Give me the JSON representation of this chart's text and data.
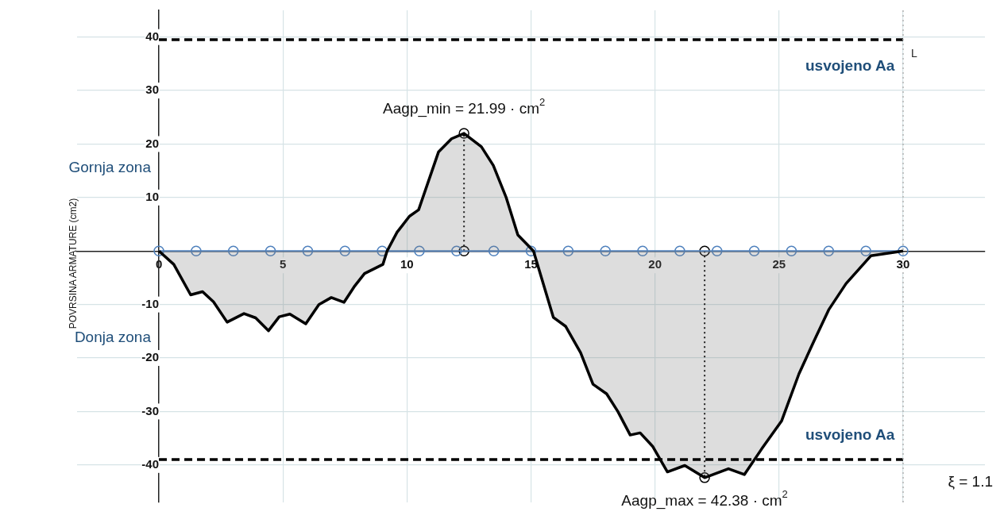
{
  "chart_data": {
    "type": "area",
    "ylabel": "POVRSINA ARMATURE (cm2)",
    "xlim": [
      -3.3,
      33.3
    ],
    "ylim": [
      -47,
      45
    ],
    "xticks": [
      0,
      5,
      10,
      15,
      20,
      25,
      30
    ],
    "yticks": [
      -40,
      -30,
      -20,
      -10,
      10,
      20,
      30,
      40
    ],
    "grid": true,
    "series": [
      {
        "type": "area",
        "color": "#000000",
        "x": [
          0,
          0.6,
          1.28,
          1.76,
          2.2,
          2.75,
          3.43,
          3.9,
          4.42,
          4.85,
          5.28,
          5.92,
          6.45,
          6.95,
          7.46,
          7.9,
          8.29,
          9.03,
          9.2,
          9.6,
          10.1,
          10.47,
          11.27,
          11.8,
          12.3,
          13.0,
          13.48,
          14.0,
          14.47,
          15.1,
          15.9,
          16.4,
          17.0,
          17.5,
          18.05,
          18.5,
          19.0,
          19.4,
          19.9,
          20.5,
          21.2,
          22.0,
          22.96,
          23.6,
          24.3,
          25.1,
          25.8,
          26.4,
          27.0,
          27.7,
          28.7,
          30
        ],
        "values": [
          0,
          -2.5,
          -8.2,
          -7.6,
          -9.5,
          -13.3,
          -11.7,
          -12.5,
          -14.9,
          -12.3,
          -11.8,
          -13.6,
          -10,
          -8.7,
          -9.6,
          -6.5,
          -4.2,
          -2.5,
          0,
          3.5,
          6.5,
          7.7,
          18.5,
          21,
          21.99,
          19.5,
          16,
          10,
          3,
          0,
          -12.4,
          -14.1,
          -19,
          -24.9,
          -26.7,
          -30,
          -34.4,
          -34,
          -36.5,
          -41.3,
          -40.1,
          -42.38,
          -40.7,
          -41.8,
          -37,
          -31.8,
          -23,
          -16.9,
          -11,
          -6.1,
          -0.9,
          0
        ]
      },
      {
        "type": "line",
        "color": "#4f81bd",
        "x": [
          0,
          1.5,
          3,
          4.5,
          6,
          7.5,
          9,
          10.5,
          12,
          13.5,
          15,
          16.5,
          18,
          19.5,
          21,
          22.5,
          24,
          25.5,
          27,
          28.5,
          30
        ],
        "values": [
          0,
          0,
          0,
          0,
          0,
          0,
          0,
          0,
          0,
          0,
          0,
          0,
          0,
          0,
          0,
          0,
          0,
          0,
          0,
          0,
          0
        ],
        "marker": "circle"
      },
      {
        "type": "line",
        "color": "#000000",
        "x": [
          12.3,
          12.3
        ],
        "values": [
          0,
          21.99
        ],
        "marker": "circle",
        "line_style": "dotted"
      },
      {
        "type": "line",
        "color": "#000000",
        "x": [
          22,
          22
        ],
        "values": [
          0,
          -42.38
        ],
        "marker": "circle",
        "line_style": "dotted"
      }
    ],
    "ref_lines": [
      {
        "axis": "y",
        "value": 39.5,
        "label": "usvojeno Aa",
        "line_style": "dashed",
        "color": "#000000"
      },
      {
        "axis": "y",
        "value": -39,
        "label": "usvojeno Aa",
        "line_style": "dashed",
        "color": "#000000"
      },
      {
        "axis": "x",
        "value": 30,
        "label": "L",
        "line_style": "dotted",
        "color": "#b0b0b0"
      }
    ],
    "annotations": [
      {
        "text": "Aagp_min = 21.99 · cm$^{2}$",
        "x": 12.3,
        "y": 21.99
      },
      {
        "text": "Aagp_max = 42.38 · cm$^{2}$",
        "x": 22,
        "y": -42.38
      },
      "Gornja zona",
      "Donja zona",
      "ξ = 1.1"
    ]
  }
}
